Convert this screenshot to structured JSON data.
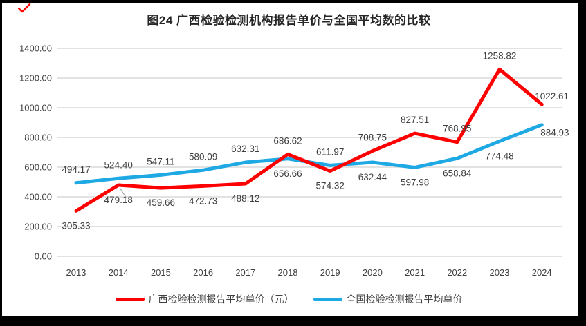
{
  "window": {
    "background": "#FFFFFF",
    "border_color": "#000000"
  },
  "red_mark": {
    "color": "#FF0000"
  },
  "title": "图24  广西检验检测机构报告单价与全国平均数的比较",
  "chart_data": {
    "type": "line",
    "x": [
      "2013",
      "2014",
      "2015",
      "2016",
      "2017",
      "2018",
      "2019",
      "2020",
      "2021",
      "2022",
      "2023",
      "2024"
    ],
    "series": [
      {
        "name": "广西检验检测报告平均单价（元）",
        "color": "#FF0000",
        "values": [
          305.33,
          479.18,
          459.66,
          472.73,
          488.12,
          686.62,
          574.32,
          708.75,
          827.51,
          768.95,
          1258.82,
          1022.61
        ],
        "label_positions": [
          "below",
          "below",
          "below",
          "below",
          "below",
          "above",
          "below",
          "above",
          "above",
          "above",
          "above",
          "above-right"
        ]
      },
      {
        "name": "全国检验检测报告平均单价",
        "color": "#1FA9E4",
        "values": [
          494.17,
          524.4,
          547.11,
          580.09,
          632.31,
          656.66,
          611.97,
          632.44,
          597.98,
          658.84,
          774.48,
          884.93
        ],
        "label_positions": [
          "above",
          "above",
          "above",
          "above",
          "above",
          "below",
          "above",
          "below",
          "below",
          "below",
          "below",
          "below-right"
        ]
      }
    ],
    "ylim": [
      0,
      1400
    ],
    "ytick_step": 200,
    "ytick_labels": [
      "0.00",
      "200.00",
      "400.00",
      "600.00",
      "800.00",
      "1000.00",
      "1200.00",
      "1400.00"
    ],
    "grid": true,
    "gridline_color": "#D9D9D9",
    "label_color": "#404040",
    "legend_position": "bottom",
    "leader_line": {
      "series_index": 0,
      "point_index": 1,
      "color": "#A6A6A6"
    }
  }
}
